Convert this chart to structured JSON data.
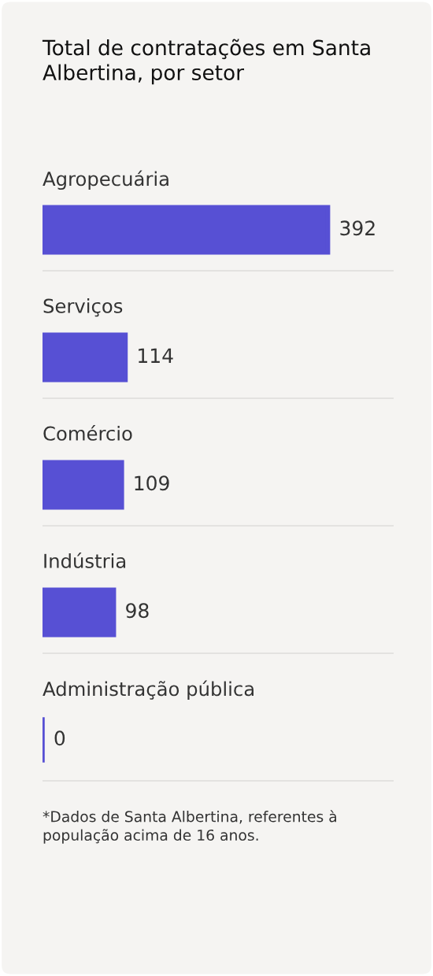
{
  "chart_data": {
    "type": "bar",
    "orientation": "horizontal",
    "title": "Total de contratações em Santa Albertina, por setor",
    "categories": [
      "Agropecuária",
      "Serviços",
      "Comércio",
      "Indústria",
      "Administração pública"
    ],
    "values": [
      392,
      114,
      109,
      98,
      0
    ],
    "color": "#5750d4",
    "data_labels": true,
    "grid": "y",
    "legend": false,
    "tick_labels": false,
    "annotations": [
      "*Dados de Santa Albertina, referentes à população acima de 16 anos."
    ]
  }
}
